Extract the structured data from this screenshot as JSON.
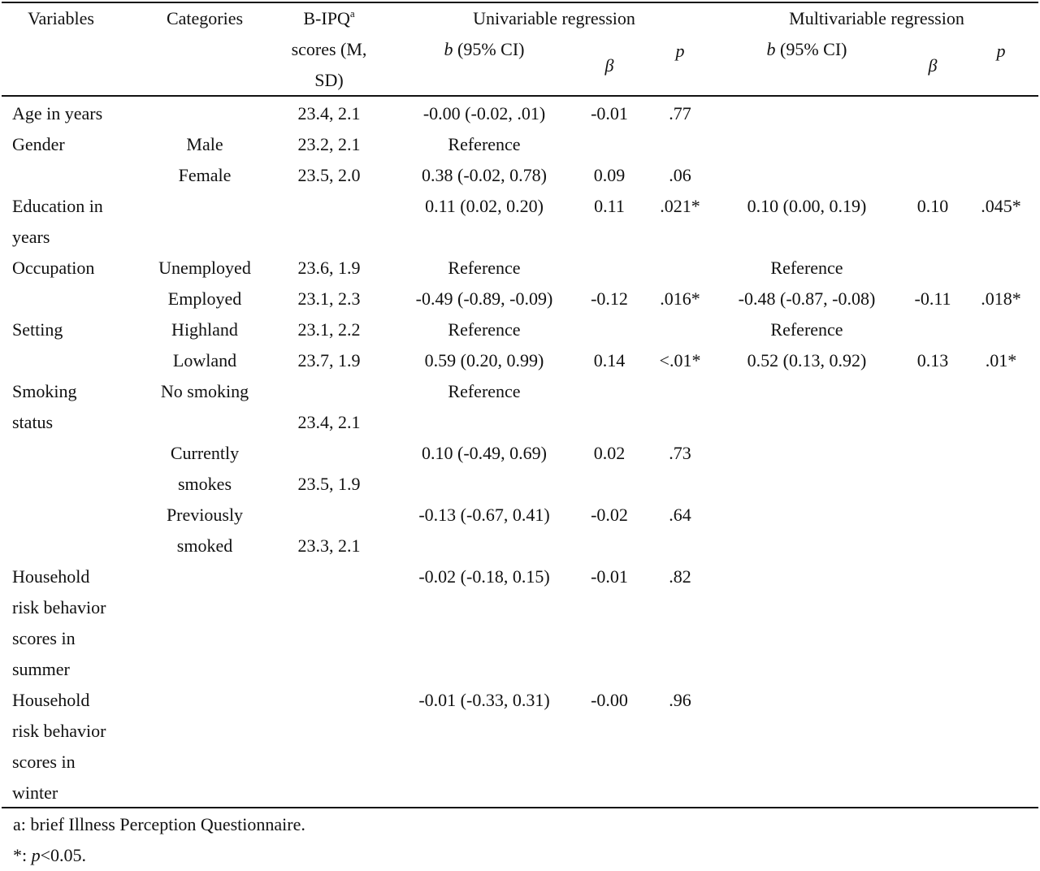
{
  "header": {
    "variables": "Variables",
    "categories": "Categories",
    "bipq_line1": "B-IPQ",
    "bipq_sup": "a",
    "bipq_line2": "scores (M,",
    "bipq_line3": "SD)",
    "univariable": "Univariable regression",
    "multivariable": "Multivariable regression",
    "b_sym": "b",
    "ci_text": " (95% CI)",
    "beta": "β",
    "p": "p"
  },
  "rows": [
    {
      "variable": [
        "Age in years"
      ],
      "category": [
        ""
      ],
      "score": "23.4, 2.1",
      "uni_b": "-0.00 (-0.02, .01)",
      "uni_beta": "-0.01",
      "uni_p": ".77",
      "multi_b": "",
      "multi_beta": "",
      "multi_p": ""
    },
    {
      "variable": [
        "Gender"
      ],
      "category": [
        "Male"
      ],
      "score": "23.2, 2.1",
      "uni_b": "Reference",
      "uni_beta": "",
      "uni_p": "",
      "multi_b": "",
      "multi_beta": "",
      "multi_p": ""
    },
    {
      "variable": [
        ""
      ],
      "category": [
        "Female"
      ],
      "score": "23.5, 2.0",
      "uni_b": "0.38 (-0.02, 0.78)",
      "uni_beta": "0.09",
      "uni_p": ".06",
      "multi_b": "",
      "multi_beta": "",
      "multi_p": ""
    },
    {
      "variable": [
        "Education in",
        "years"
      ],
      "category": [
        ""
      ],
      "score": "",
      "uni_b": "0.11 (0.02, 0.20)",
      "uni_beta": "0.11",
      "uni_p": ".021*",
      "multi_b": "0.10 (0.00, 0.19)",
      "multi_beta": "0.10",
      "multi_p": ".045*"
    },
    {
      "variable": [
        "Occupation"
      ],
      "category": [
        "Unemployed"
      ],
      "score": "23.6, 1.9",
      "uni_b": "Reference",
      "uni_beta": "",
      "uni_p": "",
      "multi_b": "Reference",
      "multi_beta": "",
      "multi_p": ""
    },
    {
      "variable": [
        ""
      ],
      "category": [
        "Employed"
      ],
      "score": "23.1, 2.3",
      "uni_b": "-0.49 (-0.89, -0.09)",
      "uni_beta": "-0.12",
      "uni_p": ".016*",
      "multi_b": "-0.48 (-0.87, -0.08)",
      "multi_beta": "-0.11",
      "multi_p": ".018*"
    },
    {
      "variable": [
        "Setting"
      ],
      "category": [
        "Highland"
      ],
      "score": "23.1, 2.2",
      "uni_b": "Reference",
      "uni_beta": "",
      "uni_p": "",
      "multi_b": "Reference",
      "multi_beta": "",
      "multi_p": ""
    },
    {
      "variable": [
        ""
      ],
      "category": [
        "Lowland"
      ],
      "score": "23.7, 1.9",
      "uni_b": "0.59 (0.20, 0.99)",
      "uni_beta": "0.14",
      "uni_p": "<.01*",
      "multi_b": "0.52 (0.13, 0.92)",
      "multi_beta": "0.13",
      "multi_p": ".01*"
    },
    {
      "variable": [
        "Smoking",
        "status"
      ],
      "category": [
        "No smoking",
        ""
      ],
      "score": "23.4, 2.1",
      "uni_b": "Reference",
      "uni_beta": "",
      "uni_p": "",
      "multi_b": "",
      "multi_beta": "",
      "multi_p": ""
    },
    {
      "variable": [
        ""
      ],
      "category": [
        "Currently",
        "smokes"
      ],
      "score": "23.5, 1.9",
      "uni_b": "0.10 (-0.49, 0.69)",
      "uni_beta": "0.02",
      "uni_p": ".73",
      "multi_b": "",
      "multi_beta": "",
      "multi_p": ""
    },
    {
      "variable": [
        ""
      ],
      "category": [
        "Previously",
        "smoked"
      ],
      "score": "23.3, 2.1",
      "uni_b": "-0.13 (-0.67, 0.41)",
      "uni_beta": "-0.02",
      "uni_p": ".64",
      "multi_b": "",
      "multi_beta": "",
      "multi_p": ""
    },
    {
      "variable": [
        "Household",
        "risk behavior",
        "scores in",
        "summer"
      ],
      "category": [
        ""
      ],
      "score": "",
      "uni_b": "-0.02 (-0.18, 0.15)",
      "uni_beta": "-0.01",
      "uni_p": ".82",
      "multi_b": "",
      "multi_beta": "",
      "multi_p": ""
    },
    {
      "variable": [
        "Household",
        "risk behavior",
        "scores in",
        "winter"
      ],
      "category": [
        ""
      ],
      "score": "",
      "uni_b": "-0.01 (-0.33, 0.31)",
      "uni_beta": "-0.00",
      "uni_p": ".96",
      "multi_b": "",
      "multi_beta": "",
      "multi_p": ""
    }
  ],
  "footnotes": {
    "a": "a: brief Illness Perception Questionnaire.",
    "sig_prefix": "*: ",
    "sig_p": "p",
    "sig_suffix": "<0.05."
  }
}
